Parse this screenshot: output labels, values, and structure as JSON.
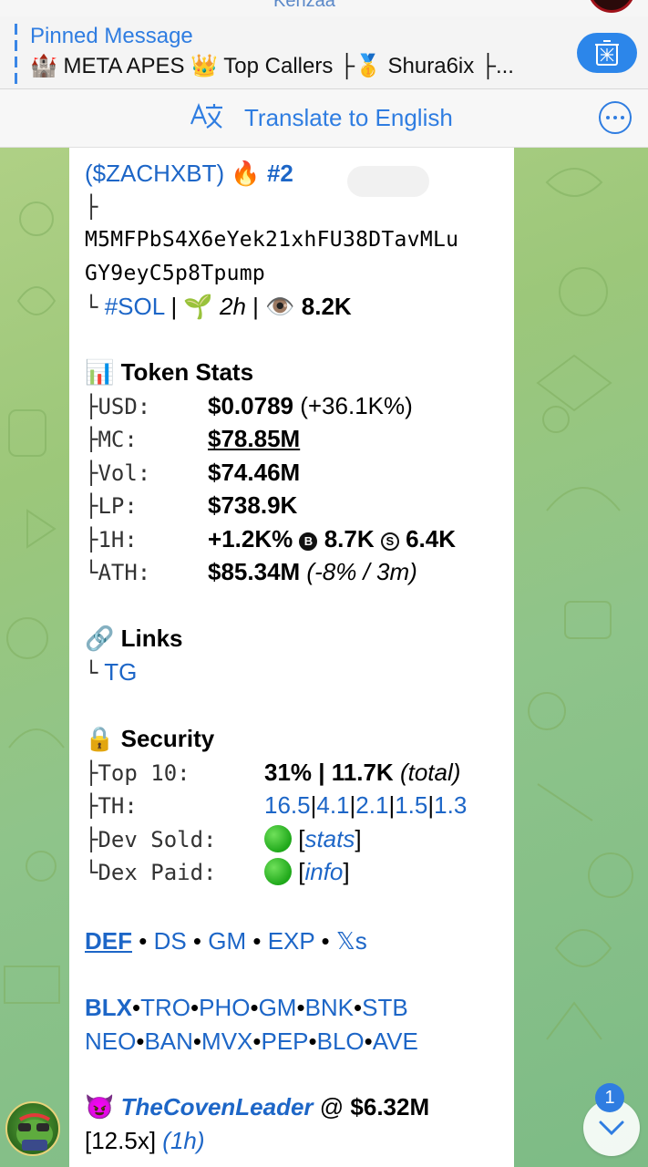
{
  "header": {
    "title_partial": "Kenzaa"
  },
  "pinned": {
    "title": "Pinned Message",
    "text": "🏰 META APES 👑 Top Callers ├🥇 Shura6ix ├..."
  },
  "translate": {
    "label": "Translate to English"
  },
  "message": {
    "ticker_line": "($ZACHXBT)",
    "fire": "🔥",
    "rank": "#2",
    "branch1": "├",
    "address_line1": "M5MFPbS4X6eYek21xhFU38DTavMLu",
    "address_line2": "GY9eyC5p8Tpump",
    "meta_prefix": "└",
    "chain": "#SOL",
    "sep1": " | ",
    "sprout": "🌱",
    "age": "2h",
    "sep2": " | ",
    "eye": "👁️",
    "views": "8.2K",
    "token_stats": {
      "icon": "📊",
      "title": "Token Stats",
      "rows": [
        {
          "branch": "├",
          "key": "USD:",
          "value": "$0.0789",
          "extra": " (+36.1K%)"
        },
        {
          "branch": "├",
          "key": "MC:",
          "value": "$78.85M",
          "extra": ""
        },
        {
          "branch": "├",
          "key": "Vol:",
          "value": "$74.46M",
          "extra": ""
        },
        {
          "branch": "├",
          "key": "LP:",
          "value": "$738.9K",
          "extra": ""
        }
      ],
      "h1": {
        "branch": "├",
        "key": "1H:",
        "pct": "+1.2K%",
        "b_symbol": "B",
        "b_value": "8.7K",
        "s_symbol": "S",
        "s_value": "6.4K"
      },
      "ath": {
        "branch": "└",
        "key": "ATH:",
        "value": "$85.34M",
        "extra": "(-8% / 3m)"
      }
    },
    "links": {
      "icon": "🔗",
      "title": "Links",
      "branch": "└",
      "tg": "TG"
    },
    "security": {
      "icon": "🔒",
      "title": "Security",
      "top10": {
        "branch": "├",
        "key": "Top 10:",
        "value": "31% | 11.7K",
        "extra": "(total)"
      },
      "th": {
        "branch": "├",
        "key": "TH:",
        "values": [
          "16.5",
          "4.1",
          "2.1",
          "1.5",
          "1.3"
        ],
        "sep": "|"
      },
      "dev_sold": {
        "branch": "├",
        "key": "Dev Sold:",
        "link": "stats"
      },
      "dex_paid": {
        "branch": "└",
        "key": "Dex Paid:",
        "link": "info"
      }
    },
    "quick_links": {
      "items": [
        "DEF",
        "DS",
        "GM",
        "EXP",
        "𝕏s"
      ],
      "sep": " • "
    },
    "bots_row1": {
      "items": [
        "BLX",
        "TRO",
        "PHO",
        "GM",
        "BNK",
        "STB"
      ],
      "sep": "•"
    },
    "bots_row2": {
      "items": [
        "NEO",
        "BAN",
        "MVX",
        "PEP",
        "BLO",
        "AVE"
      ],
      "sep": "•"
    },
    "caller": {
      "icon": "😈",
      "name": "TheCovenLeader",
      "at": " @ ",
      "mc": "$6.32M",
      "mult": "[12.5x]",
      "time": "(1h)"
    }
  },
  "unread_badge": "1",
  "colors": {
    "accent": "#2f7de1",
    "link": "#1d66c7",
    "bubble": "#ffffff"
  }
}
